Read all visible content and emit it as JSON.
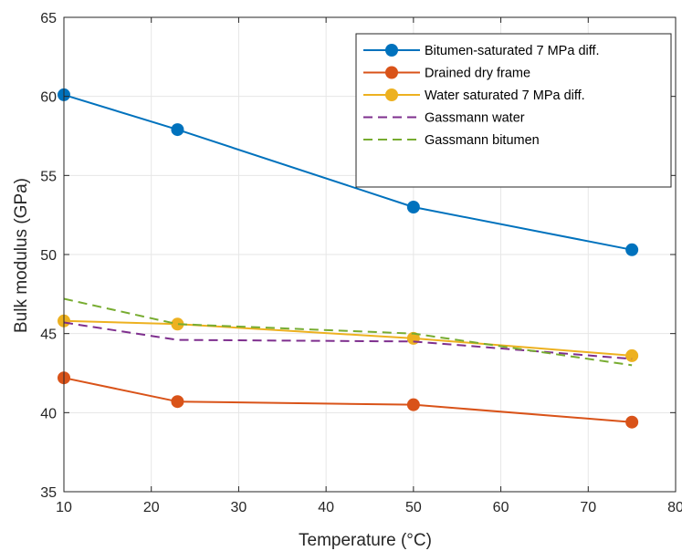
{
  "chart_data": {
    "type": "line",
    "title": "",
    "xlabel": "Temperature (°C)",
    "ylabel": "Bulk modulus (GPa)",
    "xlim": [
      10,
      80
    ],
    "ylim": [
      35,
      65
    ],
    "xticks": [
      10,
      20,
      30,
      40,
      50,
      60,
      70,
      80
    ],
    "yticks": [
      35,
      40,
      45,
      50,
      55,
      60,
      65
    ],
    "grid": true,
    "legend_position": "top-right",
    "series": [
      {
        "name": "Bitumen-saturated 7 MPa diff.",
        "color": "#0072BD",
        "line_style": "solid",
        "marker": "circle",
        "x": [
          10,
          23,
          50,
          75
        ],
        "y": [
          60.1,
          57.9,
          53.0,
          50.3
        ]
      },
      {
        "name": "Drained dry frame",
        "color": "#D95319",
        "line_style": "solid",
        "marker": "circle",
        "x": [
          10,
          23,
          50,
          75
        ],
        "y": [
          42.2,
          40.7,
          40.5,
          39.4
        ]
      },
      {
        "name": "Water saturated 7 MPa diff.",
        "color": "#EDB120",
        "line_style": "solid",
        "marker": "circle",
        "x": [
          10,
          23,
          50,
          75
        ],
        "y": [
          45.8,
          45.6,
          44.7,
          43.6
        ]
      },
      {
        "name": "Gassmann water",
        "color": "#7E2F8E",
        "line_style": "dashed",
        "marker": "none",
        "x": [
          10,
          23,
          50,
          75
        ],
        "y": [
          45.7,
          44.6,
          44.5,
          43.4
        ]
      },
      {
        "name": "Gassmann bitumen",
        "color": "#77AC30",
        "line_style": "dashed",
        "marker": "none",
        "x": [
          10,
          23,
          50,
          75
        ],
        "y": [
          47.2,
          45.6,
          45.0,
          43.0
        ]
      }
    ]
  }
}
